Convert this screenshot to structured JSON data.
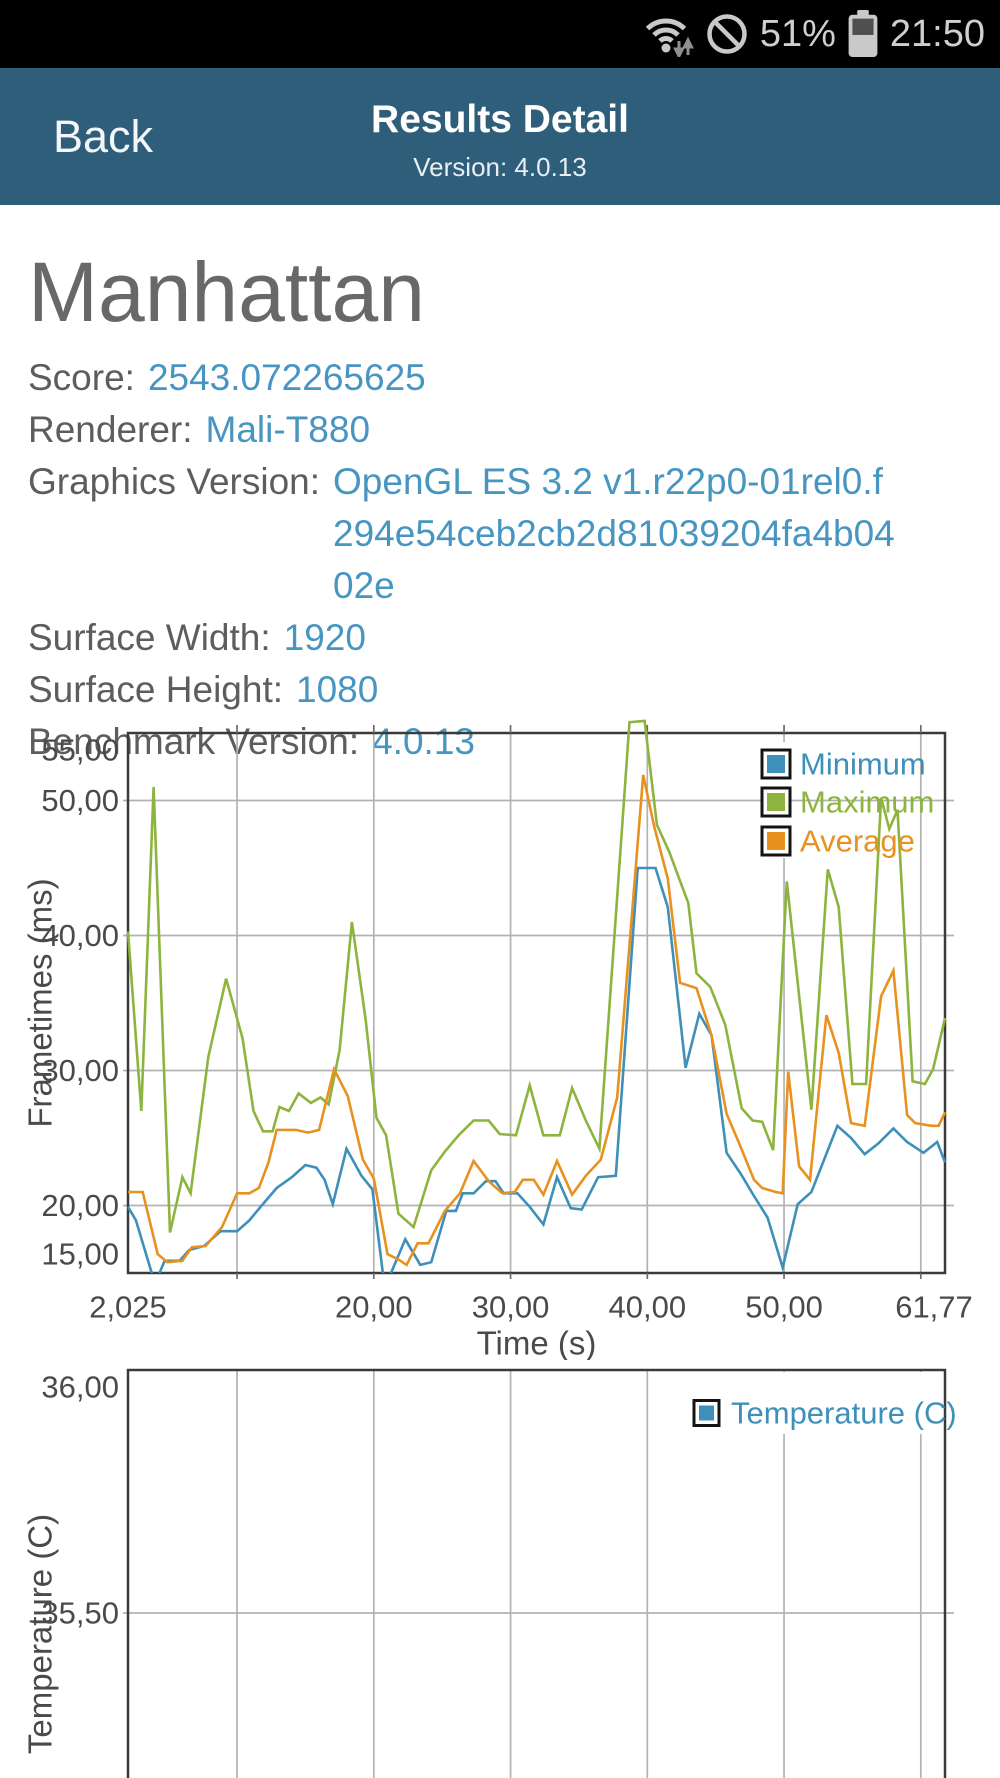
{
  "status_bar": {
    "battery_percent": "51%",
    "time": "21:50",
    "icons": [
      "wifi-icon",
      "do-not-disturb-icon",
      "battery-icon"
    ]
  },
  "header": {
    "back_label": "Back",
    "title": "Results Detail",
    "version": "Version: 4.0.13"
  },
  "result": {
    "title": "Manhattan",
    "fields": [
      {
        "label": "Score:",
        "value": "2543.072265625"
      },
      {
        "label": "Renderer:",
        "value": "Mali-T880"
      },
      {
        "label": "Graphics Version:",
        "value": "OpenGL ES 3.2 v1.r22p0-01rel0.f294e54ceb2cb2d81039204fa4b0402e"
      },
      {
        "label": "Surface Width:",
        "value": "1920"
      },
      {
        "label": "Surface Height:",
        "value": "1080"
      },
      {
        "label": "Benchmark Version:",
        "value": "4.0.13"
      }
    ]
  },
  "colors": {
    "header_bg": "#2f5e7b",
    "accent_blue": "#4795c1",
    "series_blue": "#3e8fba",
    "series_green": "#8cb43e",
    "series_orange": "#e8911f",
    "grid": "#b2b2b2",
    "frame": "#3a3a3a",
    "axis_text": "#4a4a4a",
    "status_text": "#cfcfcf"
  },
  "chart_data": [
    {
      "type": "line",
      "xlabel": "Time (s)",
      "ylabel": "Frametimes (ms)",
      "xlim": [
        2.025,
        61.77
      ],
      "ylim": [
        15,
        55
      ],
      "grid": true,
      "legend_position": "top-right",
      "x_gridlines": [
        10,
        20,
        30,
        40,
        50,
        60
      ],
      "y_gridlines": [
        20,
        30,
        40,
        50
      ],
      "x_ticks": [
        {
          "t": 2.025,
          "label": "2,025"
        },
        {
          "t": 20,
          "label": "20,00"
        },
        {
          "t": 30,
          "label": "30,00"
        },
        {
          "t": 40,
          "label": "40,00"
        },
        {
          "t": 50,
          "label": "50,00"
        },
        {
          "t": 61.77,
          "label": "61,77"
        }
      ],
      "y_ticks": [
        {
          "v": 55,
          "label": "55,00"
        },
        {
          "v": 50,
          "label": "50,00"
        },
        {
          "v": 40,
          "label": "40,00"
        },
        {
          "v": 30,
          "label": "30,00"
        },
        {
          "v": 20,
          "label": "20,00"
        },
        {
          "v": 15,
          "label": "15,00"
        }
      ],
      "legend": [
        {
          "label": "Minimum",
          "color": "#3e8fba"
        },
        {
          "label": "Maximum",
          "color": "#8cb43e"
        },
        {
          "label": "Average",
          "color": "#e8911f"
        }
      ],
      "series": [
        {
          "name": "Minimum",
          "color": "#3e8fba",
          "points": [
            [
              2.025,
              19.9
            ],
            [
              2.6,
              18.9
            ],
            [
              4.0,
              14.2
            ],
            [
              4.7,
              15.9
            ],
            [
              5.8,
              15.9
            ],
            [
              6.5,
              16.7
            ],
            [
              7.6,
              17.0
            ],
            [
              8.8,
              18.1
            ],
            [
              10.0,
              18.1
            ],
            [
              10.9,
              18.9
            ],
            [
              11.8,
              20.0
            ],
            [
              12.9,
              21.3
            ],
            [
              14.0,
              22.1
            ],
            [
              15.0,
              23.0
            ],
            [
              15.8,
              22.8
            ],
            [
              16.4,
              21.9
            ],
            [
              17.0,
              20.1
            ],
            [
              18.0,
              24.2
            ],
            [
              19.1,
              22.2
            ],
            [
              19.9,
              21.2
            ],
            [
              20.8,
              13.9
            ],
            [
              22.3,
              17.5
            ],
            [
              23.4,
              15.6
            ],
            [
              24.2,
              15.8
            ],
            [
              25.3,
              19.6
            ],
            [
              26.0,
              19.6
            ],
            [
              26.5,
              20.9
            ],
            [
              27.3,
              20.9
            ],
            [
              28.2,
              21.8
            ],
            [
              28.9,
              21.8
            ],
            [
              29.5,
              20.9
            ],
            [
              30.5,
              20.9
            ],
            [
              31.4,
              19.9
            ],
            [
              32.4,
              18.6
            ],
            [
              33.4,
              22.1
            ],
            [
              34.4,
              19.8
            ],
            [
              35.2,
              19.7
            ],
            [
              36.4,
              22.1
            ],
            [
              37.7,
              22.2
            ],
            [
              39.3,
              45.0
            ],
            [
              40.6,
              45.0
            ],
            [
              41.5,
              42.1
            ],
            [
              42.8,
              30.2
            ],
            [
              43.8,
              34.2
            ],
            [
              44.7,
              32.6
            ],
            [
              45.8,
              23.9
            ],
            [
              46.8,
              22.4
            ],
            [
              47.8,
              20.7
            ],
            [
              48.8,
              19.1
            ],
            [
              49.9,
              15.4
            ],
            [
              51.0,
              20.1
            ],
            [
              52.0,
              21.0
            ],
            [
              53.9,
              25.9
            ],
            [
              54.9,
              25.0
            ],
            [
              55.9,
              23.8
            ],
            [
              56.9,
              24.6
            ],
            [
              58.0,
              25.7
            ],
            [
              59.0,
              24.7
            ],
            [
              60.2,
              23.9
            ],
            [
              61.2,
              24.7
            ],
            [
              61.77,
              23.2
            ]
          ]
        },
        {
          "name": "Maximum",
          "color": "#8cb43e",
          "points": [
            [
              2.025,
              40.3
            ],
            [
              3.0,
              27.0
            ],
            [
              3.9,
              51.0
            ],
            [
              5.1,
              18.0
            ],
            [
              6.0,
              22.1
            ],
            [
              6.6,
              20.9
            ],
            [
              7.9,
              31.0
            ],
            [
              9.2,
              36.8
            ],
            [
              10.4,
              32.4
            ],
            [
              11.2,
              27.0
            ],
            [
              11.9,
              25.5
            ],
            [
              12.6,
              25.5
            ],
            [
              13.1,
              27.3
            ],
            [
              13.8,
              27.0
            ],
            [
              14.5,
              28.3
            ],
            [
              15.4,
              27.6
            ],
            [
              16.1,
              28.0
            ],
            [
              16.7,
              27.5
            ],
            [
              17.5,
              31.5
            ],
            [
              18.4,
              41.0
            ],
            [
              19.4,
              33.8
            ],
            [
              20.2,
              26.5
            ],
            [
              20.9,
              25.2
            ],
            [
              21.8,
              19.4
            ],
            [
              22.9,
              18.4
            ],
            [
              24.2,
              22.6
            ],
            [
              25.2,
              24.0
            ],
            [
              26.2,
              25.2
            ],
            [
              27.3,
              26.3
            ],
            [
              28.4,
              26.3
            ],
            [
              29.2,
              25.3
            ],
            [
              30.4,
              25.2
            ],
            [
              31.4,
              28.9
            ],
            [
              32.4,
              25.2
            ],
            [
              33.6,
              25.2
            ],
            [
              34.5,
              28.7
            ],
            [
              35.5,
              26.3
            ],
            [
              36.5,
              24.2
            ],
            [
              38.7,
              55.8
            ],
            [
              39.8,
              55.9
            ],
            [
              40.7,
              48.2
            ],
            [
              41.6,
              46.2
            ],
            [
              43.0,
              42.4
            ],
            [
              43.6,
              37.2
            ],
            [
              44.6,
              36.2
            ],
            [
              45.7,
              33.4
            ],
            [
              46.9,
              27.2
            ],
            [
              47.7,
              26.3
            ],
            [
              48.4,
              26.2
            ],
            [
              49.2,
              24.1
            ],
            [
              50.2,
              44.0
            ],
            [
              52.0,
              27.1
            ],
            [
              53.2,
              44.9
            ],
            [
              54.0,
              42.1
            ],
            [
              55.0,
              29.0
            ],
            [
              56.0,
              29.0
            ],
            [
              57.1,
              50.2
            ],
            [
              57.7,
              47.9
            ],
            [
              58.3,
              49.3
            ],
            [
              59.4,
              29.2
            ],
            [
              60.3,
              29.0
            ],
            [
              60.9,
              30.1
            ],
            [
              61.77,
              33.9
            ]
          ]
        },
        {
          "name": "Average",
          "color": "#e8911f",
          "points": [
            [
              2.025,
              21.0
            ],
            [
              3.1,
              21.0
            ],
            [
              4.2,
              16.4
            ],
            [
              4.9,
              15.8
            ],
            [
              6.0,
              15.9
            ],
            [
              6.7,
              16.9
            ],
            [
              7.7,
              17.0
            ],
            [
              8.9,
              18.4
            ],
            [
              10.0,
              20.9
            ],
            [
              10.9,
              20.9
            ],
            [
              11.6,
              21.3
            ],
            [
              12.3,
              23.2
            ],
            [
              12.9,
              25.6
            ],
            [
              14.3,
              25.6
            ],
            [
              15.2,
              25.4
            ],
            [
              16.0,
              25.6
            ],
            [
              17.1,
              30.1
            ],
            [
              18.1,
              28.1
            ],
            [
              19.2,
              23.4
            ],
            [
              20.0,
              22.0
            ],
            [
              21.0,
              16.4
            ],
            [
              21.8,
              16.0
            ],
            [
              22.4,
              15.6
            ],
            [
              23.2,
              17.2
            ],
            [
              24.0,
              17.2
            ],
            [
              25.2,
              19.6
            ],
            [
              26.3,
              20.9
            ],
            [
              27.3,
              23.3
            ],
            [
              28.4,
              21.8
            ],
            [
              29.4,
              20.9
            ],
            [
              30.3,
              21.0
            ],
            [
              30.9,
              21.9
            ],
            [
              31.7,
              21.9
            ],
            [
              32.4,
              20.8
            ],
            [
              33.4,
              23.3
            ],
            [
              34.5,
              20.8
            ],
            [
              35.5,
              22.2
            ],
            [
              36.6,
              23.4
            ],
            [
              37.8,
              28.0
            ],
            [
              39.7,
              51.9
            ],
            [
              40.5,
              48.1
            ],
            [
              41.5,
              44.2
            ],
            [
              42.4,
              36.5
            ],
            [
              43.6,
              36.1
            ],
            [
              44.7,
              32.6
            ],
            [
              45.8,
              26.8
            ],
            [
              46.8,
              24.4
            ],
            [
              47.8,
              21.9
            ],
            [
              48.4,
              21.3
            ],
            [
              49.4,
              21.0
            ],
            [
              49.9,
              20.9
            ],
            [
              50.3,
              29.9
            ],
            [
              51.1,
              22.9
            ],
            [
              51.9,
              21.9
            ],
            [
              53.1,
              34.1
            ],
            [
              54.0,
              31.3
            ],
            [
              54.9,
              26.1
            ],
            [
              55.9,
              25.9
            ],
            [
              57.1,
              35.5
            ],
            [
              58.0,
              37.4
            ],
            [
              59.0,
              26.7
            ],
            [
              59.6,
              26.1
            ],
            [
              60.8,
              25.9
            ],
            [
              61.3,
              25.9
            ],
            [
              61.77,
              26.9
            ]
          ]
        }
      ]
    },
    {
      "type": "line",
      "xlabel": "",
      "ylabel": "Temperature (C)",
      "xlim": [
        2.025,
        61.77
      ],
      "ylim": [
        35.5,
        36.0
      ],
      "grid": true,
      "legend_position": "top-right",
      "x_gridlines": [
        10,
        20,
        30,
        40,
        50,
        60
      ],
      "y_gridlines": [
        35.5
      ],
      "x_ticks": [],
      "y_ticks": [
        {
          "v": 36.0,
          "label": "36,00"
        },
        {
          "v": 35.5,
          "label": "35,50"
        }
      ],
      "legend": [
        {
          "label": "Temperature (C)",
          "color": "#3e8fba"
        }
      ],
      "series": [
        {
          "name": "Temperature (C)",
          "color": "#3e8fba",
          "points": []
        }
      ]
    }
  ]
}
